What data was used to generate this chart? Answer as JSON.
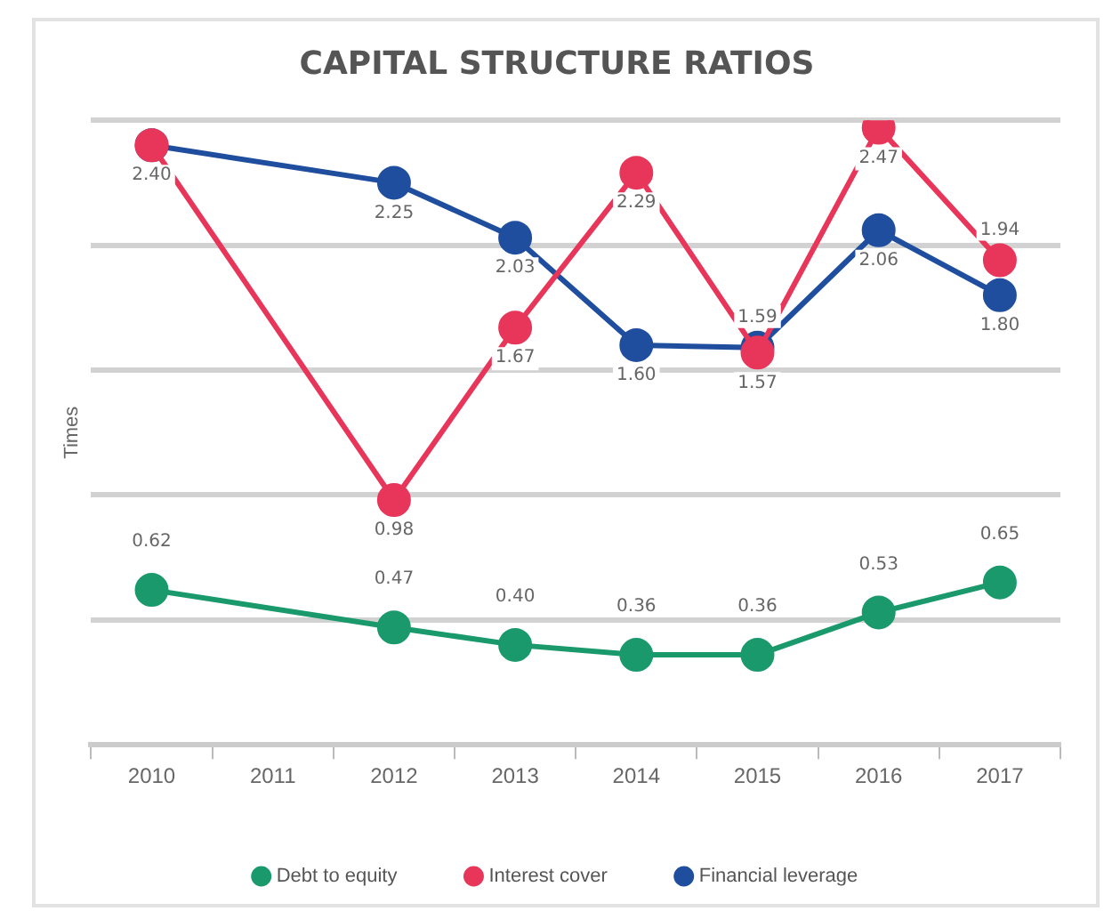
{
  "chart_data": {
    "type": "line",
    "title": "CAPITAL STRUCTURE RATIOS",
    "ylabel": "Times",
    "categories": [
      "2010",
      "2011",
      "2012",
      "2013",
      "2014",
      "2015",
      "2016",
      "2017"
    ],
    "series": [
      {
        "name": "Debt to equity",
        "color": "#1a9a6c",
        "values": [
          0.62,
          null,
          0.47,
          0.4,
          0.36,
          0.36,
          0.53,
          0.65
        ],
        "value_labels": [
          "0.62",
          null,
          "0.47",
          "0.40",
          "0.36",
          "0.36",
          "0.53",
          "0.65"
        ]
      },
      {
        "name": "Interest cover",
        "color": "#e8365a",
        "values": [
          2.4,
          null,
          0.98,
          1.67,
          2.29,
          1.57,
          2.47,
          1.94
        ],
        "value_labels": [
          null,
          null,
          "0.98",
          "1.67",
          "2.29",
          "1.57",
          "2.47",
          "1.94"
        ]
      },
      {
        "name": "Financial leverage",
        "color": "#1f4e9f",
        "values": [
          2.4,
          null,
          2.25,
          2.03,
          1.6,
          1.59,
          2.06,
          1.8
        ],
        "value_labels": [
          "2.40",
          null,
          "2.25",
          "2.03",
          "1.60",
          "1.59",
          "2.06",
          "1.80"
        ]
      }
    ],
    "ylim": [
      0,
      2.5
    ],
    "yticks": [
      {
        "value": 0,
        "label": null
      },
      {
        "value": 0.5,
        "label": null
      },
      {
        "value": 1,
        "label": null
      },
      {
        "value": 1.5,
        "label": null
      },
      {
        "value": 2,
        "label": null
      },
      {
        "value": 2.5,
        "label": null
      }
    ],
    "tick_labels": "x",
    "grid": "y",
    "legend": "bottom",
    "marker": "circle",
    "line_style": "solid"
  }
}
